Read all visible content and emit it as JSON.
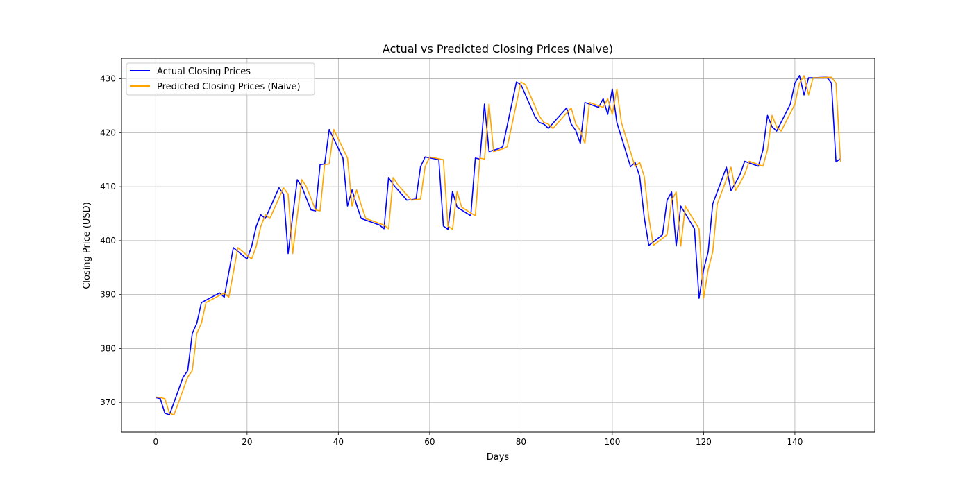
{
  "chart_data": {
    "type": "line",
    "title": "Actual vs Predicted Closing Prices (Naive)",
    "xlabel": "Days",
    "ylabel": "Closing Price (USD)",
    "xlim": [
      -7.5,
      157.5
    ],
    "ylim": [
      364.5,
      433.8
    ],
    "x_ticks": [
      0,
      20,
      40,
      60,
      80,
      100,
      120,
      140
    ],
    "y_ticks": [
      370,
      380,
      390,
      400,
      410,
      420,
      430
    ],
    "grid": true,
    "legend_position": "upper-left",
    "series": [
      {
        "name": "Actual Closing Prices",
        "color": "#0000ff",
        "points": [
          [
            0,
            370.9
          ],
          [
            1,
            370.7
          ],
          [
            2,
            368.0
          ],
          [
            3,
            367.7
          ],
          [
            6,
            374.7
          ],
          [
            7,
            375.9
          ],
          [
            8,
            382.8
          ],
          [
            9,
            384.7
          ],
          [
            10,
            388.5
          ],
          [
            14,
            390.3
          ],
          [
            15,
            389.5
          ],
          [
            17,
            398.7
          ],
          [
            20,
            396.6
          ],
          [
            21,
            398.9
          ],
          [
            22,
            402.6
          ],
          [
            23,
            404.8
          ],
          [
            24,
            404.1
          ],
          [
            27,
            409.8
          ],
          [
            28,
            408.6
          ],
          [
            29,
            397.6
          ],
          [
            30,
            404.6
          ],
          [
            31,
            411.3
          ],
          [
            32,
            410.0
          ],
          [
            34,
            405.7
          ],
          [
            35,
            405.5
          ],
          [
            36,
            414.1
          ],
          [
            37,
            414.2
          ],
          [
            38,
            420.6
          ],
          [
            41,
            415.3
          ],
          [
            42,
            406.4
          ],
          [
            43,
            409.4
          ],
          [
            44,
            406.6
          ],
          [
            45,
            404.1
          ],
          [
            49,
            402.9
          ],
          [
            50,
            402.2
          ],
          [
            51,
            411.7
          ],
          [
            52,
            410.4
          ],
          [
            55,
            407.5
          ],
          [
            57,
            407.7
          ],
          [
            58,
            413.7
          ],
          [
            59,
            415.5
          ],
          [
            62,
            415.0
          ],
          [
            63,
            402.7
          ],
          [
            64,
            402.1
          ],
          [
            65,
            409.1
          ],
          [
            66,
            406.2
          ],
          [
            69,
            404.6
          ],
          [
            70,
            415.3
          ],
          [
            71,
            415.1
          ],
          [
            72,
            425.3
          ],
          [
            73,
            416.5
          ],
          [
            75,
            417.0
          ],
          [
            76,
            417.4
          ],
          [
            79,
            429.4
          ],
          [
            80,
            428.9
          ],
          [
            83,
            423.1
          ],
          [
            84,
            421.9
          ],
          [
            85,
            421.6
          ],
          [
            86,
            420.8
          ],
          [
            90,
            424.6
          ],
          [
            91,
            421.6
          ],
          [
            92,
            420.4
          ],
          [
            93,
            418.0
          ],
          [
            94,
            425.6
          ],
          [
            97,
            424.7
          ],
          [
            98,
            426.3
          ],
          [
            99,
            423.4
          ],
          [
            100,
            428.1
          ],
          [
            101,
            421.9
          ],
          [
            104,
            413.7
          ],
          [
            105,
            414.5
          ],
          [
            106,
            411.9
          ],
          [
            107,
            404.3
          ],
          [
            108,
            399.1
          ],
          [
            111,
            401.1
          ],
          [
            112,
            407.5
          ],
          [
            113,
            409.0
          ],
          [
            114,
            399.0
          ],
          [
            115,
            406.4
          ],
          [
            118,
            402.2
          ],
          [
            119,
            389.3
          ],
          [
            120,
            394.6
          ],
          [
            121,
            397.9
          ],
          [
            122,
            406.8
          ],
          [
            125,
            413.6
          ],
          [
            126,
            409.3
          ],
          [
            127,
            410.7
          ],
          [
            128,
            412.3
          ],
          [
            129,
            414.7
          ],
          [
            132,
            413.8
          ],
          [
            133,
            416.8
          ],
          [
            134,
            423.2
          ],
          [
            135,
            421.1
          ],
          [
            136,
            420.3
          ],
          [
            139,
            425.3
          ],
          [
            140,
            429.2
          ],
          [
            141,
            430.6
          ],
          [
            142,
            427.0
          ],
          [
            143,
            430.2
          ],
          [
            144,
            430.2
          ],
          [
            147,
            430.3
          ],
          [
            148,
            429.2
          ],
          [
            149,
            414.6
          ],
          [
            150,
            415.2
          ]
        ]
      },
      {
        "name": "Predicted Closing Prices (Naive)",
        "color": "#ffa500",
        "points": [
          [
            0,
            371.0
          ],
          [
            1,
            370.9
          ],
          [
            2,
            370.7
          ],
          [
            3,
            368.0
          ],
          [
            4,
            367.7
          ],
          [
            7,
            374.7
          ],
          [
            8,
            375.9
          ],
          [
            9,
            382.8
          ],
          [
            10,
            384.7
          ],
          [
            11,
            388.5
          ],
          [
            15,
            390.3
          ],
          [
            16,
            389.5
          ],
          [
            18,
            398.7
          ],
          [
            21,
            396.6
          ],
          [
            22,
            398.9
          ],
          [
            23,
            402.6
          ],
          [
            24,
            404.8
          ],
          [
            25,
            404.1
          ],
          [
            28,
            409.8
          ],
          [
            29,
            408.6
          ],
          [
            30,
            397.6
          ],
          [
            31,
            404.6
          ],
          [
            32,
            411.3
          ],
          [
            33,
            410.0
          ],
          [
            35,
            405.7
          ],
          [
            36,
            405.5
          ],
          [
            37,
            414.1
          ],
          [
            38,
            414.2
          ],
          [
            39,
            420.6
          ],
          [
            42,
            415.3
          ],
          [
            43,
            406.4
          ],
          [
            44,
            409.4
          ],
          [
            45,
            406.6
          ],
          [
            46,
            404.1
          ],
          [
            50,
            402.9
          ],
          [
            51,
            402.2
          ],
          [
            52,
            411.7
          ],
          [
            53,
            410.4
          ],
          [
            56,
            407.5
          ],
          [
            58,
            407.7
          ],
          [
            59,
            413.7
          ],
          [
            60,
            415.5
          ],
          [
            63,
            415.0
          ],
          [
            64,
            402.7
          ],
          [
            65,
            402.1
          ],
          [
            66,
            409.1
          ],
          [
            67,
            406.2
          ],
          [
            70,
            404.6
          ],
          [
            71,
            415.3
          ],
          [
            72,
            415.1
          ],
          [
            73,
            425.3
          ],
          [
            74,
            416.5
          ],
          [
            76,
            417.0
          ],
          [
            77,
            417.4
          ],
          [
            80,
            429.4
          ],
          [
            81,
            428.9
          ],
          [
            84,
            423.1
          ],
          [
            85,
            421.9
          ],
          [
            86,
            421.6
          ],
          [
            87,
            420.8
          ],
          [
            91,
            424.6
          ],
          [
            92,
            421.6
          ],
          [
            93,
            420.4
          ],
          [
            94,
            418.0
          ],
          [
            95,
            425.6
          ],
          [
            98,
            424.7
          ],
          [
            99,
            426.3
          ],
          [
            100,
            423.4
          ],
          [
            101,
            428.1
          ],
          [
            102,
            421.9
          ],
          [
            105,
            413.7
          ],
          [
            106,
            414.5
          ],
          [
            107,
            411.9
          ],
          [
            108,
            404.3
          ],
          [
            109,
            399.1
          ],
          [
            112,
            401.1
          ],
          [
            113,
            407.5
          ],
          [
            114,
            409.0
          ],
          [
            115,
            399.0
          ],
          [
            116,
            406.4
          ],
          [
            119,
            402.2
          ],
          [
            120,
            389.3
          ],
          [
            121,
            394.6
          ],
          [
            122,
            397.9
          ],
          [
            123,
            406.8
          ],
          [
            126,
            413.6
          ],
          [
            127,
            409.3
          ],
          [
            128,
            410.7
          ],
          [
            129,
            412.3
          ],
          [
            130,
            414.7
          ],
          [
            133,
            413.8
          ],
          [
            134,
            416.8
          ],
          [
            135,
            423.2
          ],
          [
            136,
            421.1
          ],
          [
            137,
            420.3
          ],
          [
            140,
            425.3
          ],
          [
            141,
            429.2
          ],
          [
            142,
            430.6
          ],
          [
            143,
            427.0
          ],
          [
            144,
            430.2
          ],
          [
            145,
            430.2
          ],
          [
            148,
            430.3
          ],
          [
            149,
            429.2
          ],
          [
            150,
            414.6
          ]
        ]
      }
    ]
  }
}
